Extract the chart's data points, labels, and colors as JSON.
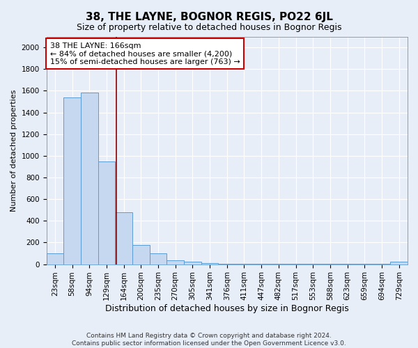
{
  "title": "38, THE LAYNE, BOGNOR REGIS, PO22 6JL",
  "subtitle": "Size of property relative to detached houses in Bognor Regis",
  "xlabel": "Distribution of detached houses by size in Bognor Regis",
  "ylabel": "Number of detached properties",
  "footer_line1": "Contains HM Land Registry data © Crown copyright and database right 2024.",
  "footer_line2": "Contains public sector information licensed under the Open Government Licence v3.0.",
  "bin_labels": [
    "23sqm",
    "58sqm",
    "94sqm",
    "129sqm",
    "164sqm",
    "200sqm",
    "235sqm",
    "270sqm",
    "305sqm",
    "341sqm",
    "376sqm",
    "411sqm",
    "447sqm",
    "482sqm",
    "517sqm",
    "553sqm",
    "588sqm",
    "623sqm",
    "659sqm",
    "694sqm",
    "729sqm"
  ],
  "bar_heights": [
    100,
    1540,
    1580,
    950,
    480,
    180,
    100,
    35,
    25,
    10,
    5,
    3,
    2,
    2,
    2,
    2,
    1,
    1,
    1,
    1,
    20
  ],
  "bar_color": "#C5D8F0",
  "bar_edge_color": "#5B9BD5",
  "annotation_text": "38 THE LAYNE: 166sqm\n← 84% of detached houses are smaller (4,200)\n15% of semi-detached houses are larger (763) →",
  "annotation_box_color": "white",
  "annotation_box_edge_color": "#CC0000",
  "vline_x": 3.57,
  "vline_color": "#8B0000",
  "ylim": [
    0,
    2100
  ],
  "yticks": [
    0,
    200,
    400,
    600,
    800,
    1000,
    1200,
    1400,
    1600,
    1800,
    2000
  ],
  "bg_color": "#E8EEF8",
  "grid_color": "#FFFFFF",
  "title_fontsize": 11,
  "subtitle_fontsize": 9,
  "ylabel_fontsize": 8,
  "xlabel_fontsize": 9,
  "tick_fontsize": 7.5,
  "annotation_fontsize": 8,
  "footer_fontsize": 6.5
}
